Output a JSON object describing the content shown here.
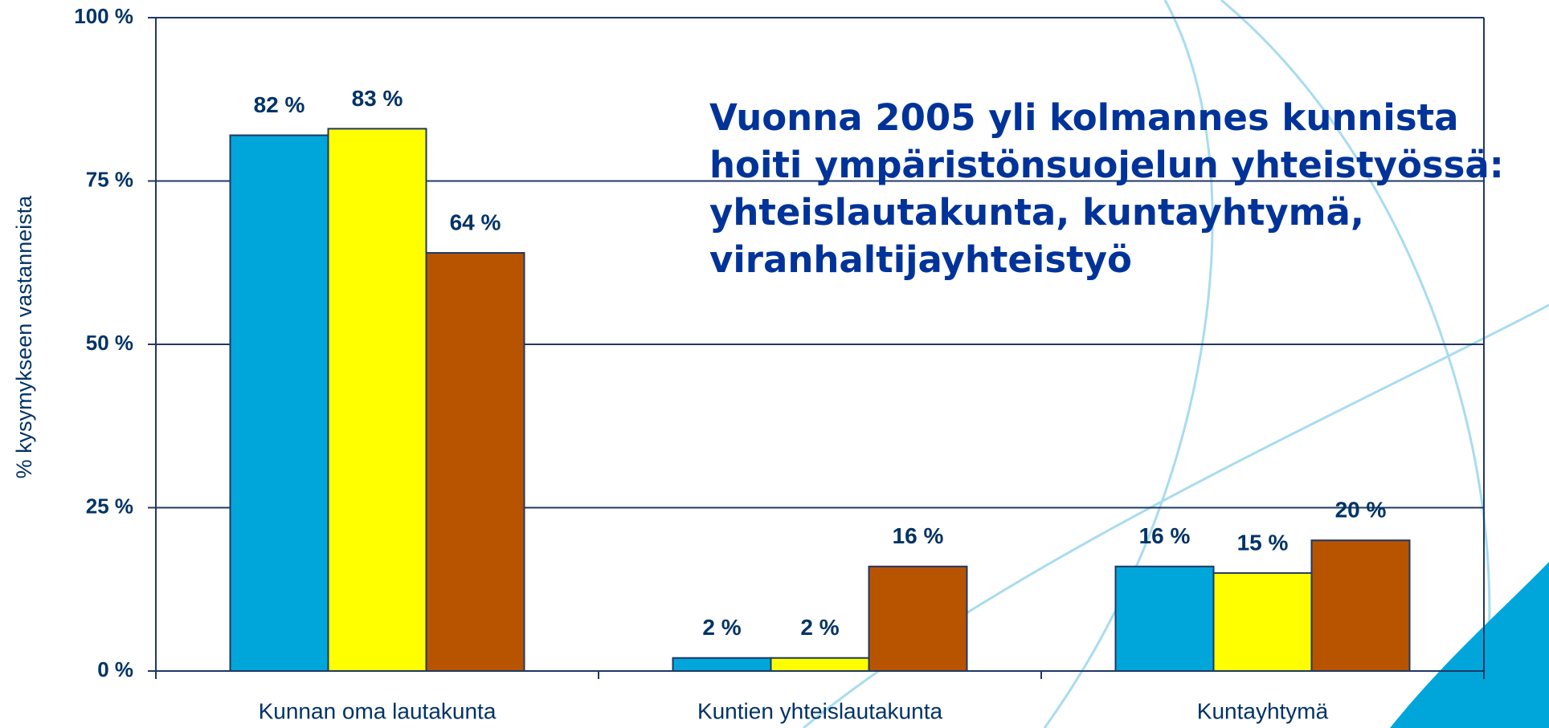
{
  "chart_data": {
    "type": "bar",
    "ylabel": "% kysymykseen vastanneista",
    "annotation": [
      "Vuonna 2005 yli kolmannes kunnista",
      "hoiti ympäristönsuojelun yhteistyössä:",
      "yhteislautakunta, kuntayhtymä,",
      "viranhaltijayhteistyö"
    ],
    "categories": [
      "Kunnan oma lautakunta",
      "Kuntien yhteislautakunta",
      "Kuntayhtymä"
    ],
    "series": [
      {
        "color": "#00a6d9",
        "values": [
          82,
          2,
          16
        ],
        "value_labels": [
          "82 %",
          "2 %",
          "16 %"
        ]
      },
      {
        "color": "#ffff00",
        "values": [
          83,
          2,
          15
        ],
        "value_labels": [
          "83 %",
          "2 %",
          "15 %"
        ]
      },
      {
        "color": "#b85400",
        "values": [
          64,
          16,
          20
        ],
        "value_labels": [
          "64 %",
          "16 %",
          "20 %"
        ]
      }
    ],
    "ylim": [
      0,
      100
    ],
    "yticks": [
      {
        "value": 0,
        "label": "0 %"
      },
      {
        "value": 25,
        "label": "25 %"
      },
      {
        "value": 50,
        "label": "50 %"
      },
      {
        "value": 75,
        "label": "75 %"
      },
      {
        "value": 100,
        "label": "100 %"
      }
    ],
    "grid": true
  }
}
